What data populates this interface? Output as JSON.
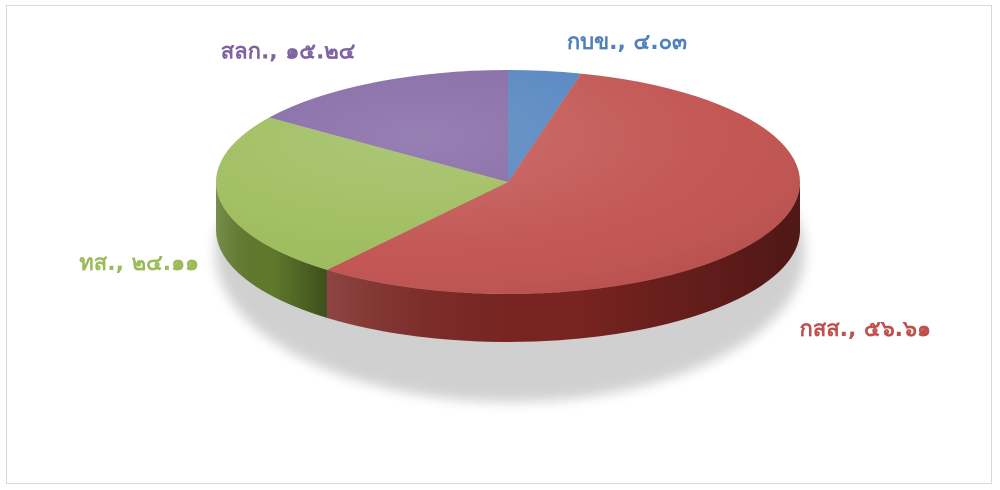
{
  "chart_data": {
    "type": "pie",
    "style": "3d",
    "title": "",
    "slices": [
      {
        "name": "กบข.",
        "value": 4.03,
        "label": "กบข., ๔.๐๓",
        "color": "#4f81bd",
        "side": "#2f4e74"
      },
      {
        "name": "กสส.",
        "value": 56.61,
        "label": "กสส., ๕๖.๖๑",
        "color": "#c0504d",
        "side": "#7a2421"
      },
      {
        "name": "ทส.",
        "value": 24.11,
        "label": "ทส., ๒๔.๑๑",
        "color": "#9bbb59",
        "side": "#5f7a2c"
      },
      {
        "name": "สลก.",
        "value": 15.24,
        "label": "สลก., ๑๕.๒๔",
        "color": "#8064a2",
        "side": "#4c3866"
      }
    ]
  }
}
